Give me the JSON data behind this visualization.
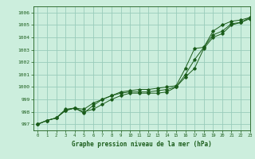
{
  "title": "Graphe pression niveau de la mer (hPa)",
  "bg_color": "#cceedd",
  "grid_color": "#99ccbb",
  "line_color": "#1a5c1a",
  "xlim": [
    -0.5,
    23
  ],
  "ylim": [
    996.5,
    1006.5
  ],
  "yticks": [
    997,
    998,
    999,
    1000,
    1001,
    1002,
    1003,
    1004,
    1005,
    1006
  ],
  "xticks": [
    0,
    1,
    2,
    3,
    4,
    5,
    6,
    7,
    8,
    9,
    10,
    11,
    12,
    13,
    14,
    15,
    16,
    17,
    18,
    19,
    20,
    21,
    22,
    23
  ],
  "series1": [
    997.0,
    997.3,
    997.5,
    998.1,
    998.3,
    998.0,
    998.2,
    998.6,
    999.0,
    999.3,
    999.5,
    999.5,
    999.5,
    999.5,
    999.6,
    1000.0,
    1000.8,
    1001.5,
    1003.1,
    1004.0,
    1004.3,
    1005.0,
    1005.2,
    1005.5
  ],
  "series2": [
    997.0,
    997.3,
    997.5,
    998.1,
    998.3,
    997.9,
    998.5,
    999.0,
    999.3,
    999.5,
    999.6,
    999.6,
    999.6,
    999.7,
    999.8,
    1000.0,
    1001.0,
    1002.2,
    1003.2,
    1004.5,
    1005.0,
    1005.3,
    1005.4,
    1005.6
  ],
  "series3": [
    997.0,
    997.3,
    997.5,
    998.2,
    998.3,
    998.2,
    998.7,
    999.0,
    999.3,
    999.6,
    999.7,
    999.8,
    999.8,
    999.9,
    1000.0,
    1000.1,
    1001.5,
    1003.1,
    1003.2,
    1004.2,
    1004.5,
    1005.1,
    1005.2,
    1005.6
  ]
}
